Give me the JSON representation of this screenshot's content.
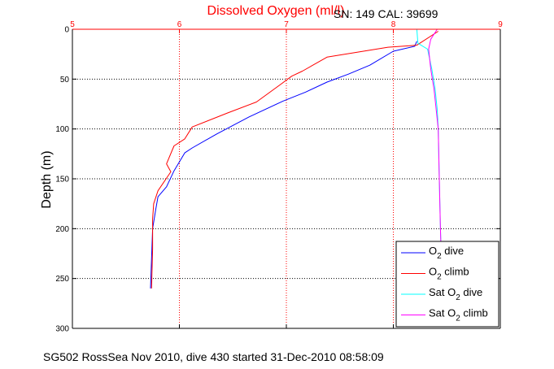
{
  "header": {
    "title": "Dissolved Oxygen (ml/l)",
    "serial": "SN: 149  CAL: 39699"
  },
  "footer": {
    "caption": "SG502 RossSea Nov 2010, dive 430 started 31-Dec-2010 08:58:09"
  },
  "colors": {
    "axis_top": "#ff0000",
    "axis": "#000000",
    "grid_x": "#ff0000",
    "grid_y": "#000000",
    "o2_dive": "#0000ff",
    "o2_climb": "#ff0000",
    "sat_dive": "#00ffff",
    "sat_climb": "#ff00ff"
  },
  "chart_data": {
    "type": "line",
    "title": "Dissolved Oxygen (ml/l)",
    "xlabel": "Dissolved Oxygen (ml/l)",
    "ylabel": "Depth (m)",
    "x_axis_position": "top",
    "y_reversed": true,
    "xlim": [
      5,
      9
    ],
    "ylim": [
      0,
      300
    ],
    "xticks": [
      "5",
      "6",
      "7",
      "8",
      "9"
    ],
    "yticks": [
      "0",
      "50",
      "100",
      "150",
      "200",
      "250",
      "300"
    ],
    "grid": true,
    "legend": "bottom-right",
    "series": [
      {
        "name": "O2 dive",
        "legend_main": "O",
        "legend_sub": "2",
        "legend_rest": " dive",
        "color": "#0000ff",
        "x": [
          8.22,
          8.2,
          8.0,
          7.78,
          7.58,
          7.38,
          7.18,
          6.97,
          6.65,
          6.35,
          6.12,
          6.05,
          5.95,
          5.88,
          5.8,
          5.78,
          5.75,
          5.74,
          5.73
        ],
        "y": [
          12,
          17,
          22,
          36,
          45,
          53,
          63,
          72,
          88,
          105,
          119,
          124,
          142,
          158,
          168,
          180,
          200,
          230,
          260
        ]
      },
      {
        "name": "O2 climb",
        "legend_main": "O",
        "legend_sub": "2",
        "legend_rest": " climb",
        "color": "#ff0000",
        "x": [
          8.42,
          8.22,
          7.95,
          7.38,
          7.15,
          7.05,
          6.95,
          6.72,
          6.45,
          6.12,
          6.05,
          5.95,
          5.88,
          5.92,
          5.8,
          5.76,
          5.75,
          5.75,
          5.74
        ],
        "y": [
          2,
          16,
          18,
          28,
          42,
          47,
          55,
          73,
          84,
          98,
          110,
          117,
          135,
          143,
          162,
          175,
          190,
          220,
          260
        ]
      },
      {
        "name": "Sat O2 dive",
        "legend_main": "Sat O",
        "legend_sub": "2",
        "legend_rest": " dive",
        "color": "#00ffff",
        "x": [
          8.22,
          8.23,
          8.32,
          8.36,
          8.39,
          8.41,
          8.42,
          8.43,
          8.44,
          8.45
        ],
        "y": [
          0,
          14,
          20,
          40,
          60,
          80,
          100,
          150,
          200,
          235
        ]
      },
      {
        "name": "Sat O2 climb",
        "legend_main": "Sat O",
        "legend_sub": "2",
        "legend_rest": " climb",
        "color": "#ff00ff",
        "x": [
          8.41,
          8.35,
          8.33,
          8.35,
          8.38,
          8.4,
          8.42,
          8.43,
          8.44,
          8.45
        ],
        "y": [
          0,
          10,
          20,
          40,
          60,
          80,
          100,
          150,
          200,
          235
        ]
      }
    ]
  }
}
